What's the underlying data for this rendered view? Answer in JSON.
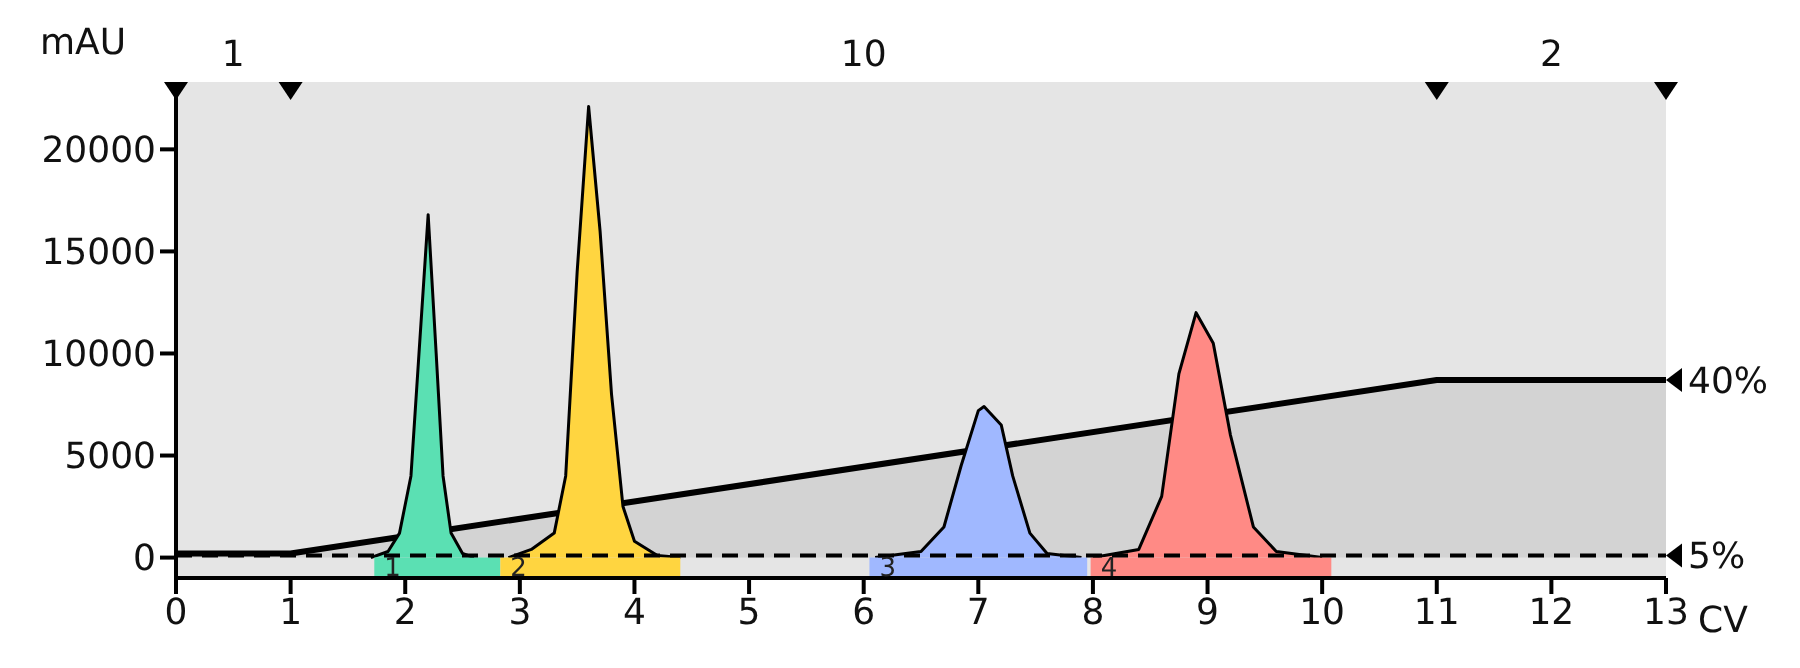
{
  "chart_data": {
    "type": "area",
    "xlabel": "CV",
    "ylabel": "mAU",
    "xlim": [
      0,
      13
    ],
    "xticks": [
      0,
      1,
      2,
      3,
      4,
      5,
      6,
      7,
      8,
      9,
      10,
      11,
      12,
      13
    ],
    "ylim": [
      -1000,
      23300
    ],
    "yticks": [
      0,
      5000,
      10000,
      15000,
      20000
    ],
    "series": [
      {
        "color": "#d3d3d3",
        "x": [
          0,
          1,
          11,
          13
        ],
        "values": [
          200,
          200,
          8700,
          8700
        ]
      },
      {
        "color": "#5be0b3",
        "x": [
          1.7,
          1.85,
          1.95,
          2.05,
          2.12,
          2.2,
          2.27,
          2.33,
          2.4,
          2.5,
          2.6
        ],
        "values": [
          0,
          300,
          1200,
          4000,
          10000,
          16800,
          10000,
          4000,
          1200,
          200,
          0
        ]
      },
      {
        "color": "#ffd540",
        "x": [
          2.9,
          3.1,
          3.3,
          3.4,
          3.5,
          3.6,
          3.7,
          3.8,
          3.9,
          4.0,
          4.2,
          4.4
        ],
        "values": [
          0,
          400,
          1200,
          4000,
          14000,
          22100,
          16000,
          8000,
          2500,
          800,
          100,
          0
        ]
      },
      {
        "color": "#a0b8ff",
        "x": [
          6.1,
          6.5,
          6.7,
          6.85,
          7.0,
          7.05,
          7.2,
          7.3,
          7.45,
          7.6,
          7.9
        ],
        "values": [
          0,
          300,
          1500,
          4500,
          7200,
          7400,
          6500,
          4000,
          1200,
          200,
          0
        ]
      },
      {
        "color": "#ff8a85",
        "x": [
          8.0,
          8.4,
          8.6,
          8.75,
          8.9,
          9.05,
          9.2,
          9.4,
          9.6,
          10.0
        ],
        "values": [
          0,
          400,
          3000,
          9000,
          12000,
          10500,
          6000,
          1500,
          300,
          0
        ]
      }
    ],
    "bands": [
      {
        "axis": "x",
        "from": 1.73,
        "to": 2.83,
        "label": "1",
        "color": "#5be0b3"
      },
      {
        "axis": "x",
        "from": 2.83,
        "to": 4.4,
        "label": "2",
        "color": "#ffd540"
      },
      {
        "axis": "x",
        "from": 6.05,
        "to": 7.95,
        "label": "3",
        "color": "#a0b8ff"
      },
      {
        "axis": "x",
        "from": 7.98,
        "to": 10.08,
        "label": "4",
        "color": "#ff8a85"
      }
    ],
    "ref_lines": [
      {
        "axis": "y",
        "value": 100,
        "line_style": "dashed"
      }
    ],
    "annotations": [
      "1",
      "10",
      "2",
      {
        "text": "40%",
        "x": 13,
        "y": 8700
      },
      {
        "text": "5%",
        "x": 13,
        "y": 100
      }
    ]
  }
}
